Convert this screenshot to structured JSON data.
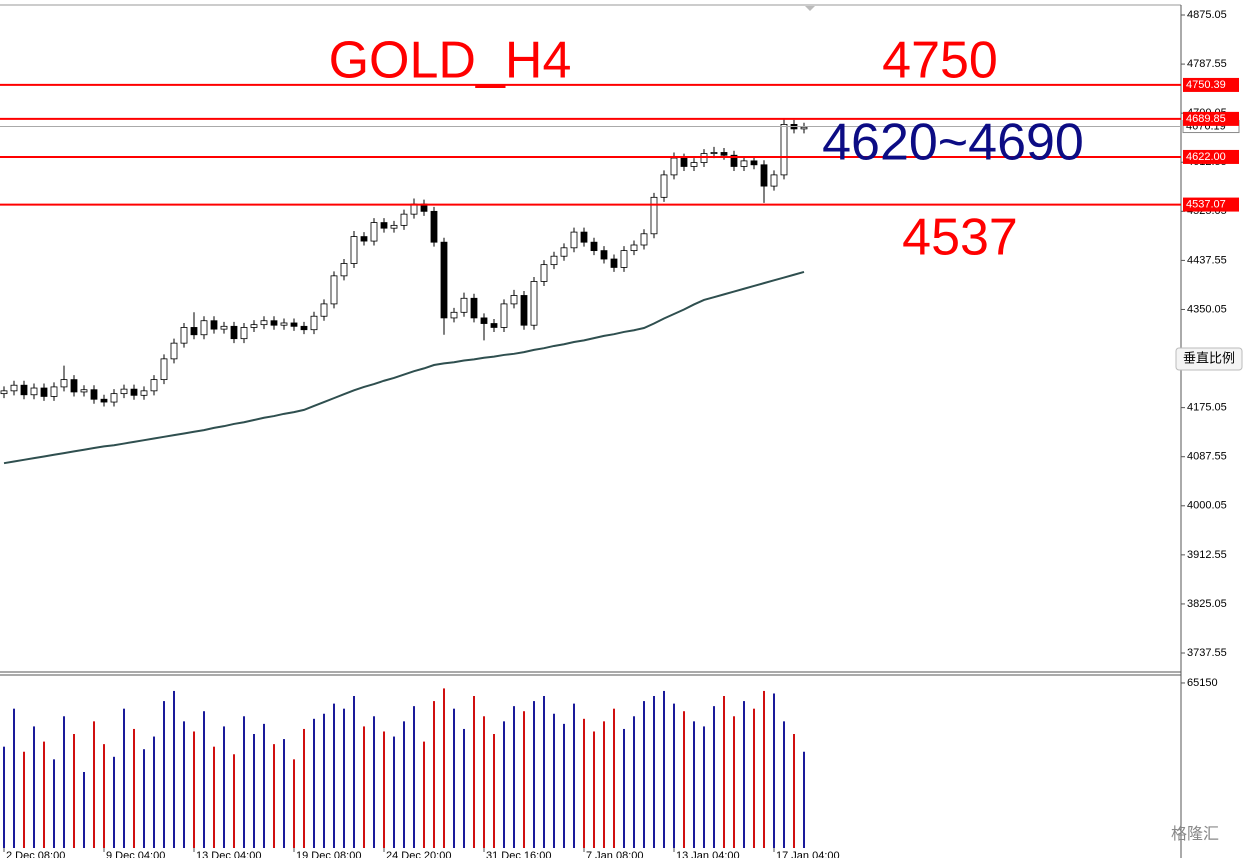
{
  "chart_data": {
    "type": "candlestick",
    "title": "GOLD_H4",
    "categories": [
      "2 Dec 08:00",
      null,
      null,
      null,
      null,
      null,
      null,
      null,
      null,
      null,
      "9 Dec 04:00",
      null,
      null,
      null,
      null,
      null,
      null,
      null,
      null,
      "13 Dec 04:00",
      null,
      null,
      null,
      null,
      null,
      null,
      null,
      null,
      null,
      "19 Dec 08:00",
      null,
      null,
      null,
      null,
      null,
      null,
      null,
      null,
      "24 Dec 20:00",
      null,
      null,
      null,
      null,
      null,
      null,
      null,
      null,
      null,
      "31 Dec 16:00",
      null,
      null,
      null,
      null,
      null,
      null,
      null,
      null,
      null,
      "7 Jan 08:00",
      null,
      null,
      null,
      null,
      null,
      null,
      null,
      null,
      "13 Jan 04:00",
      null,
      null,
      null,
      null,
      null,
      null,
      null,
      null,
      null,
      "17 Jan 04:00",
      null,
      null,
      null
    ],
    "open": [
      4200,
      4205,
      4215,
      4198,
      4210,
      4195,
      4212,
      4225,
      4203,
      4207,
      4190,
      4185,
      4200,
      4208,
      4197,
      4205,
      4225,
      4262,
      4290,
      4318,
      4305,
      4330,
      4315,
      4320,
      4298,
      4318,
      4323,
      4330,
      4322,
      4326,
      4320,
      4314,
      4338,
      4360,
      4410,
      4432,
      4480,
      4472,
      4505,
      4495,
      4500,
      4520,
      4538,
      4525,
      4470,
      4335,
      4345,
      4370,
      4335,
      4325,
      4318,
      4360,
      4375,
      4322,
      4400,
      4430,
      4445,
      4460,
      4488,
      4470,
      4455,
      4440,
      4425,
      4455,
      4465,
      4485,
      4550,
      4590,
      4620,
      4605,
      4612,
      4628,
      4630,
      4625,
      4605,
      4615,
      4608,
      4570,
      4590,
      4680,
      4672
    ],
    "high": [
      4213,
      4223,
      4223,
      4218,
      4218,
      4220,
      4250,
      4233,
      4215,
      4215,
      4198,
      4208,
      4216,
      4216,
      4213,
      4233,
      4270,
      4298,
      4326,
      4345,
      4338,
      4338,
      4328,
      4328,
      4326,
      4331,
      4338,
      4338,
      4334,
      4334,
      4328,
      4346,
      4368,
      4418,
      4440,
      4490,
      4488,
      4513,
      4513,
      4508,
      4528,
      4548,
      4546,
      4533,
      4478,
      4353,
      4380,
      4378,
      4343,
      4333,
      4368,
      4385,
      4383,
      4408,
      4438,
      4453,
      4468,
      4496,
      4496,
      4478,
      4463,
      4448,
      4463,
      4473,
      4493,
      4558,
      4598,
      4630,
      4628,
      4620,
      4636,
      4640,
      4638,
      4633,
      4623,
      4623,
      4616,
      4598,
      4690,
      4688,
      4683
    ],
    "low": [
      4192,
      4197,
      4190,
      4190,
      4187,
      4187,
      4204,
      4195,
      4195,
      4182,
      4177,
      4177,
      4192,
      4189,
      4189,
      4197,
      4217,
      4254,
      4282,
      4297,
      4297,
      4307,
      4307,
      4290,
      4290,
      4310,
      4315,
      4314,
      4314,
      4312,
      4306,
      4306,
      4330,
      4352,
      4402,
      4424,
      4464,
      4464,
      4487,
      4487,
      4492,
      4512,
      4517,
      4462,
      4305,
      4327,
      4337,
      4327,
      4295,
      4310,
      4310,
      4352,
      4314,
      4314,
      4392,
      4422,
      4437,
      4452,
      4462,
      4447,
      4432,
      4417,
      4417,
      4447,
      4457,
      4477,
      4542,
      4582,
      4597,
      4597,
      4604,
      4620,
      4617,
      4597,
      4597,
      4600,
      4540,
      4562,
      4582,
      4664,
      4664
    ],
    "close": [
      4205,
      4215,
      4198,
      4210,
      4195,
      4212,
      4225,
      4203,
      4207,
      4190,
      4185,
      4200,
      4208,
      4197,
      4205,
      4225,
      4262,
      4290,
      4318,
      4305,
      4330,
      4315,
      4320,
      4298,
      4318,
      4323,
      4330,
      4322,
      4326,
      4320,
      4314,
      4338,
      4360,
      4410,
      4432,
      4480,
      4472,
      4505,
      4495,
      4500,
      4520,
      4538,
      4525,
      4470,
      4335,
      4345,
      4370,
      4335,
      4325,
      4318,
      4360,
      4375,
      4322,
      4400,
      4430,
      4445,
      4460,
      4488,
      4470,
      4455,
      4440,
      4425,
      4455,
      4465,
      4485,
      4550,
      4590,
      4620,
      4605,
      4612,
      4628,
      4630,
      4625,
      4605,
      4615,
      4608,
      4570,
      4590,
      4680,
      4672,
      4675
    ],
    "bull_color": "#ffffff",
    "bear_color": "#000000",
    "ma": {
      "color": "#2f4f4f",
      "values": [
        4076,
        4079,
        4082,
        4085,
        4088,
        4091,
        4094,
        4097,
        4100,
        4103,
        4106,
        4108,
        4111,
        4114,
        4117,
        4120,
        4123,
        4126,
        4129,
        4132,
        4135,
        4139,
        4142,
        4146,
        4149,
        4153,
        4157,
        4160,
        4164,
        4167,
        4171,
        4178,
        4185,
        4192,
        4199,
        4206,
        4212,
        4217,
        4223,
        4228,
        4234,
        4240,
        4245,
        4251,
        4254,
        4256,
        4259,
        4261,
        4264,
        4266,
        4269,
        4271,
        4274,
        4278,
        4281,
        4285,
        4288,
        4292,
        4295,
        4299,
        4303,
        4306,
        4310,
        4313,
        4317,
        4325,
        4334,
        4342,
        4350,
        4359,
        4367,
        4372,
        4377,
        4382,
        4387,
        4392,
        4397,
        4402,
        4407,
        4412,
        4417
      ]
    },
    "volume": {
      "up_color": "#1a1a9a",
      "down_color": "#d01010",
      "ylim": [
        0,
        67900
      ],
      "yticks": [
        65150
      ],
      "values": [
        40000,
        55000,
        38000,
        48000,
        42000,
        35000,
        52000,
        45000,
        30000,
        50000,
        41000,
        36000,
        55000,
        47000,
        39000,
        44000,
        58000,
        62000,
        50000,
        46000,
        54000,
        40000,
        48000,
        37000,
        52000,
        45000,
        49000,
        41000,
        43000,
        35000,
        47000,
        51000,
        53000,
        57000,
        55000,
        60000,
        48000,
        52000,
        46000,
        44000,
        50000,
        56000,
        42000,
        58000,
        63000,
        55000,
        47000,
        60000,
        52000,
        45000,
        50000,
        56000,
        54000,
        58000,
        60000,
        53000,
        49000,
        57000,
        51000,
        46000,
        50000,
        55000,
        47000,
        52000,
        58000,
        60000,
        62000,
        57000,
        54000,
        50000,
        48000,
        56000,
        60000,
        52000,
        58000,
        55000,
        62000,
        61000,
        50000,
        45000,
        38000
      ]
    },
    "ylim": [
      3703.7,
      4892.9
    ],
    "yticks": [
      3737.55,
      3825.05,
      3912.55,
      4000.05,
      4087.55,
      4175.05,
      4262.55,
      4350.05,
      4437.55,
      4525.05,
      4612.55,
      4700.05,
      4787.55,
      4875.05
    ],
    "price_levels": [
      {
        "value": 4750.39,
        "label": "4750.39"
      },
      {
        "value": 4689.85,
        "label": "4689.85"
      },
      {
        "value": 4622,
        "label": "4622.00"
      },
      {
        "value": 4537.07,
        "label": "4537.07"
      }
    ],
    "level_color": "#ff0000",
    "current_price": {
      "value": 4676.19,
      "label": "4676.19"
    },
    "annotations": [
      {
        "text": "4750",
        "color": "#ff0000"
      },
      {
        "text": "4620~4690",
        "color": "#0c0c84"
      },
      {
        "text": "4537",
        "color": "#ff0000"
      }
    ]
  },
  "scale_button": "垂直比例",
  "watermark": "格隆汇"
}
